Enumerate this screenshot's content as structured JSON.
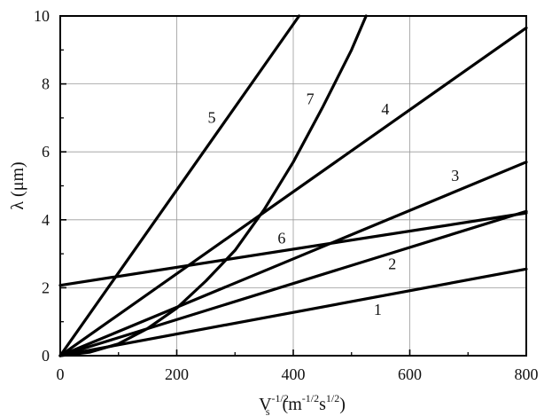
{
  "chart_data": {
    "type": "line",
    "title": "",
    "xlabel": {
      "base": "V",
      "sub": "s",
      "sup": "-1/2",
      "paren_base1": "(m",
      "paren_sup1": "-1/2",
      "paren_base2": "s",
      "paren_sup2": "1/2",
      "paren_close": ")"
    },
    "ylabel": "λ (μm)",
    "xlim": [
      0,
      800
    ],
    "ylim": [
      0,
      10
    ],
    "grid": true,
    "legend": "none",
    "x_ticks": [
      "0",
      "200",
      "400",
      "600",
      "800"
    ],
    "y_ticks": [
      "0",
      "2",
      "4",
      "6",
      "8",
      "10"
    ],
    "series": [
      {
        "name": "1",
        "x": [
          0,
          800
        ],
        "y": [
          0,
          2.55
        ]
      },
      {
        "name": "2",
        "x": [
          0,
          800
        ],
        "y": [
          0,
          4.25
        ]
      },
      {
        "name": "3",
        "x": [
          0,
          800
        ],
        "y": [
          0,
          5.7
        ]
      },
      {
        "name": "4",
        "x": [
          0,
          800
        ],
        "y": [
          0,
          9.65
        ]
      },
      {
        "name": "5",
        "x": [
          0,
          410
        ],
        "y": [
          0,
          10
        ]
      },
      {
        "name": "6",
        "x": [
          0,
          800
        ],
        "y": [
          2.07,
          4.2
        ]
      },
      {
        "name": "7",
        "x": [
          0,
          50,
          100,
          150,
          200,
          250,
          300,
          350,
          400,
          450,
          500,
          525
        ],
        "y": [
          0,
          0.1,
          0.35,
          0.8,
          1.4,
          2.2,
          3.1,
          4.3,
          5.7,
          7.3,
          9.0,
          10.0
        ]
      }
    ],
    "curve_labels": [
      {
        "text": "1",
        "x": 545,
        "y": 1.2
      },
      {
        "text": "2",
        "x": 570,
        "y": 2.55
      },
      {
        "text": "3",
        "x": 678,
        "y": 5.15
      },
      {
        "text": "4",
        "x": 558,
        "y": 7.1
      },
      {
        "text": "5",
        "x": 260,
        "y": 6.85
      },
      {
        "text": "6",
        "x": 380,
        "y": 3.3
      },
      {
        "text": "7",
        "x": 429,
        "y": 7.4
      }
    ]
  }
}
